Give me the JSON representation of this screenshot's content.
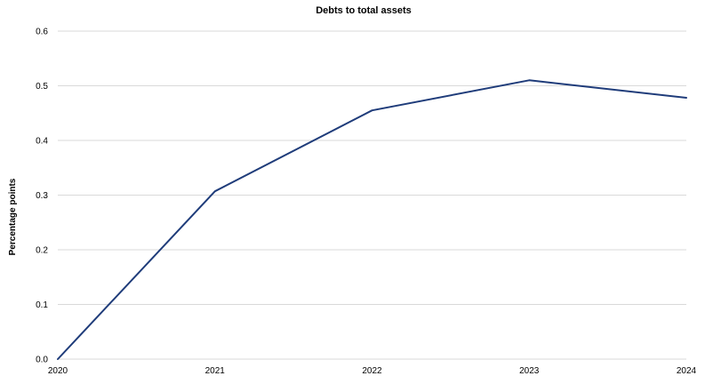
{
  "chart_data": {
    "type": "line",
    "title": "Debts to total assets",
    "xlabel": "",
    "ylabel": "Percentage points",
    "categories": [
      "2020",
      "2021",
      "2022",
      "2023",
      "2024"
    ],
    "series": [
      {
        "values": [
          0.0,
          0.307,
          0.455,
          0.51,
          0.478
        ],
        "color": "#1f3c7a"
      }
    ],
    "ylim": [
      0,
      0.6
    ],
    "yticks": [
      0.0,
      0.1,
      0.2,
      0.3,
      0.4,
      0.5,
      0.6
    ],
    "ytick_labels": [
      "0.0",
      "0.1",
      "0.2",
      "0.3",
      "0.4",
      "0.5",
      "0.6"
    ],
    "grid": true,
    "legend": "none"
  }
}
